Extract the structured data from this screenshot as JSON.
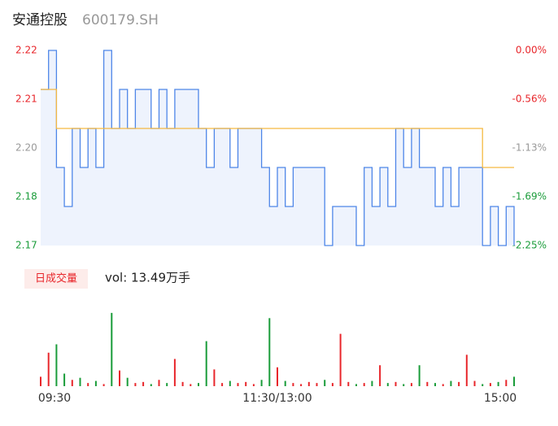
{
  "header": {
    "name": "安通控股",
    "code": "600179.SH"
  },
  "chart_data": [
    {
      "type": "line",
      "x": [
        0,
        4,
        8,
        12,
        16,
        20,
        24,
        28,
        32,
        36,
        40,
        44,
        48,
        52,
        56,
        60,
        64,
        68,
        72,
        76,
        80,
        84,
        88,
        92,
        96,
        100,
        104,
        108,
        112,
        116,
        120,
        124,
        128,
        132,
        136,
        140,
        144,
        148,
        152,
        156,
        160,
        164,
        168,
        172,
        176,
        180,
        184,
        188,
        192,
        196,
        200,
        204,
        208,
        212,
        216,
        220,
        224,
        228,
        232,
        236,
        240
      ],
      "xlim": [
        0,
        240
      ],
      "ylim": [
        2.17,
        2.22
      ],
      "yticks": [
        2.22,
        {
          "value": 2.2075,
          "label": "2.21"
        },
        {
          "value": 2.195,
          "label": "2.20"
        },
        {
          "value": 2.1825,
          "label": "2.18"
        },
        2.17
      ],
      "ytick_colors": [
        "#e8262b",
        "#e8262b",
        "#999999",
        "#1a9c3a",
        "#1a9c3a"
      ],
      "y2lim": [
        -2.25,
        0
      ],
      "y2ticks": [
        {
          "value": 0,
          "label": "0.00%"
        },
        {
          "value": -0.5625,
          "label": "-0.56%"
        },
        {
          "value": -1.125,
          "label": "-1.13%"
        },
        {
          "value": -1.6875,
          "label": "-1.69%"
        },
        {
          "value": -2.25,
          "label": "-2.25%"
        }
      ],
      "y2tick_colors": [
        "#e8262b",
        "#e8262b",
        "#999999",
        "#1a9c3a",
        "#1a9c3a"
      ],
      "series": [
        {
          "color": "#4e86e8",
          "values": [
            2.21,
            2.22,
            2.19,
            2.18,
            2.2,
            2.19,
            2.2,
            2.19,
            2.22,
            2.2,
            2.21,
            2.2,
            2.21,
            2.21,
            2.2,
            2.21,
            2.2,
            2.21,
            2.21,
            2.21,
            2.2,
            2.19,
            2.2,
            2.2,
            2.19,
            2.2,
            2.2,
            2.2,
            2.19,
            2.18,
            2.19,
            2.18,
            2.19,
            2.19,
            2.19,
            2.19,
            2.17,
            2.18,
            2.18,
            2.18,
            2.17,
            2.19,
            2.18,
            2.19,
            2.18,
            2.2,
            2.19,
            2.2,
            2.19,
            2.19,
            2.18,
            2.19,
            2.18,
            2.19,
            2.19,
            2.19,
            2.17,
            2.18,
            2.17,
            2.18,
            2.17
          ]
        },
        {
          "color": "#f5b942",
          "values": [
            2.21,
            2.21,
            2.2,
            2.2,
            2.2,
            2.2,
            2.2,
            2.2,
            2.2,
            2.2,
            2.2,
            2.2,
            2.2,
            2.2,
            2.2,
            2.2,
            2.2,
            2.2,
            2.2,
            2.2,
            2.2,
            2.2,
            2.2,
            2.2,
            2.2,
            2.2,
            2.2,
            2.2,
            2.2,
            2.2,
            2.2,
            2.2,
            2.2,
            2.2,
            2.2,
            2.2,
            2.2,
            2.2,
            2.2,
            2.2,
            2.2,
            2.2,
            2.2,
            2.2,
            2.2,
            2.2,
            2.2,
            2.2,
            2.2,
            2.2,
            2.2,
            2.2,
            2.2,
            2.2,
            2.2,
            2.2,
            2.19,
            2.19,
            2.19,
            2.19,
            2.19
          ]
        }
      ]
    },
    {
      "type": "bar",
      "button": "日成交量",
      "label": "vol: 13.49万手",
      "x": [
        0,
        4,
        8,
        12,
        16,
        20,
        24,
        28,
        32,
        36,
        40,
        44,
        48,
        52,
        56,
        60,
        64,
        68,
        72,
        76,
        80,
        84,
        88,
        92,
        96,
        100,
        104,
        108,
        112,
        116,
        120,
        124,
        128,
        132,
        136,
        140,
        144,
        148,
        152,
        156,
        160,
        164,
        168,
        172,
        176,
        180,
        184,
        188,
        192,
        196,
        200,
        204,
        208,
        212,
        216,
        220,
        224,
        228,
        232,
        236,
        240
      ],
      "xlim": [
        0,
        240
      ],
      "xticks": [
        {
          "value": 0,
          "label": "09:30"
        },
        {
          "value": 120,
          "label": "11:30/13:00"
        },
        {
          "value": 240,
          "label": "15:00"
        }
      ],
      "ylim": [
        0,
        8000
      ],
      "up_color": "#e8262b",
      "down_color": "#1a9c3a",
      "values": [
        900,
        3200,
        4000,
        1200,
        600,
        800,
        300,
        500,
        200,
        7000,
        1500,
        800,
        300,
        400,
        200,
        600,
        300,
        2600,
        400,
        200,
        300,
        4300,
        1600,
        300,
        500,
        300,
        400,
        200,
        600,
        6500,
        1800,
        500,
        300,
        200,
        400,
        300,
        600,
        300,
        5000,
        400,
        200,
        300,
        500,
        2000,
        300,
        400,
        200,
        300,
        2000,
        400,
        300,
        200,
        500,
        400,
        3000,
        500,
        200,
        300,
        400,
        600,
        900
      ]
    }
  ]
}
